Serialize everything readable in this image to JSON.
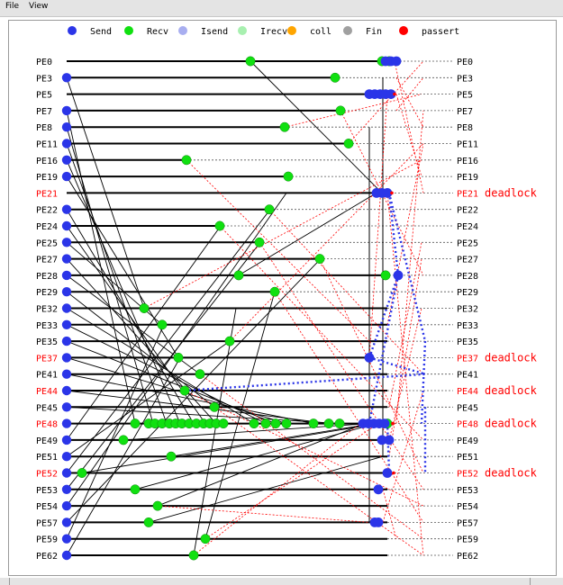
{
  "menu": [
    "File",
    "View"
  ],
  "legend": [
    {
      "label": "Send",
      "color": "#2b35e8"
    },
    {
      "label": "Recv",
      "color": "#10e010"
    },
    {
      "label": "Isend",
      "color": "#a8aef0"
    },
    {
      "label": "Irecv",
      "color": "#a8f0b0"
    },
    {
      "label": "coll",
      "color": "#ffa500"
    },
    {
      "label": "Fin",
      "color": "#a0a0a0"
    },
    {
      "label": "passert",
      "color": "#ff0000"
    }
  ],
  "deadlock_label": "deadlock",
  "rows": [
    {
      "label": "PE0",
      "deadlock": false
    },
    {
      "label": "PE3",
      "deadlock": false
    },
    {
      "label": "PE5",
      "deadlock": false
    },
    {
      "label": "PE7",
      "deadlock": false
    },
    {
      "label": "PE8",
      "deadlock": false
    },
    {
      "label": "PE11",
      "deadlock": false
    },
    {
      "label": "PE16",
      "deadlock": false
    },
    {
      "label": "PE19",
      "deadlock": false
    },
    {
      "label": "PE21",
      "deadlock": true
    },
    {
      "label": "PE22",
      "deadlock": false
    },
    {
      "label": "PE24",
      "deadlock": false
    },
    {
      "label": "PE25",
      "deadlock": false
    },
    {
      "label": "PE27",
      "deadlock": false
    },
    {
      "label": "PE28",
      "deadlock": false
    },
    {
      "label": "PE29",
      "deadlock": false
    },
    {
      "label": "PE32",
      "deadlock": false
    },
    {
      "label": "PE33",
      "deadlock": false
    },
    {
      "label": "PE35",
      "deadlock": false
    },
    {
      "label": "PE37",
      "deadlock": true
    },
    {
      "label": "PE41",
      "deadlock": false
    },
    {
      "label": "PE44",
      "deadlock": true
    },
    {
      "label": "PE45",
      "deadlock": false
    },
    {
      "label": "PE48",
      "deadlock": true
    },
    {
      "label": "PE49",
      "deadlock": false
    },
    {
      "label": "PE51",
      "deadlock": false
    },
    {
      "label": "PE52",
      "deadlock": true
    },
    {
      "label": "PE53",
      "deadlock": false
    },
    {
      "label": "PE54",
      "deadlock": false
    },
    {
      "label": "PE57",
      "deadlock": false
    },
    {
      "label": "PE59",
      "deadlock": false
    },
    {
      "label": "PE62",
      "deadlock": false
    }
  ]
}
